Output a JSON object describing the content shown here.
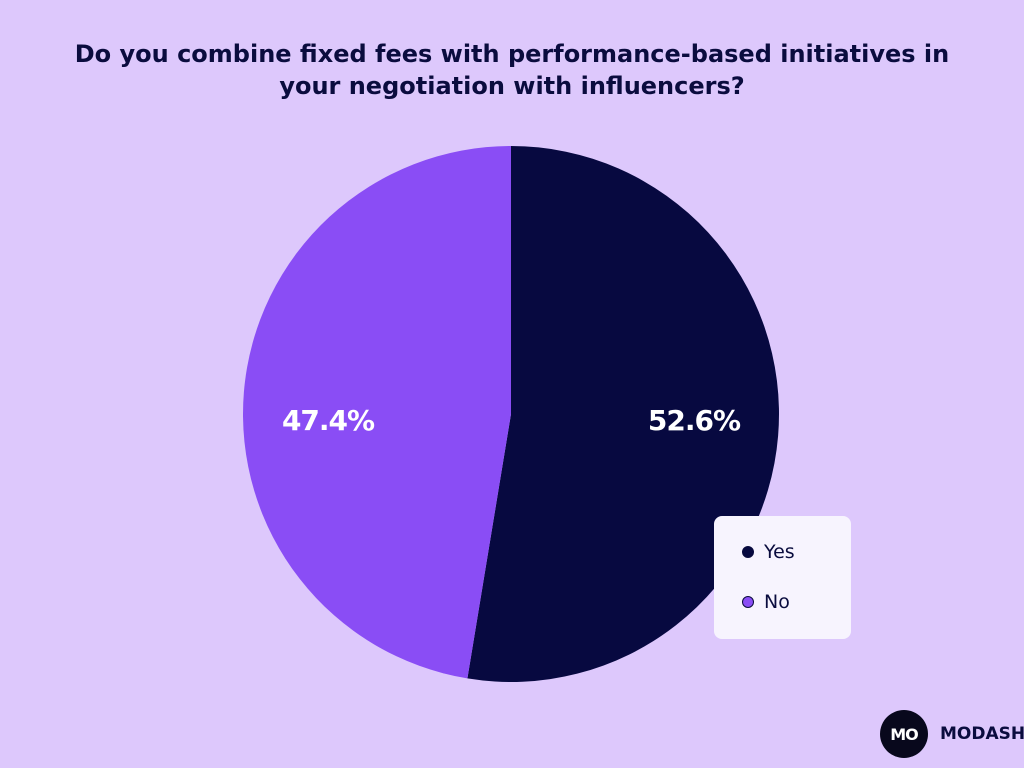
{
  "colors": {
    "background": "#DDC8FC",
    "title": "#0A0C3E",
    "yes": "#070940",
    "no": "#8A4DF5",
    "legend_bg": "#F7F4FE"
  },
  "brand": {
    "logo_text": "MO",
    "name": "MODASH"
  },
  "chart_data": {
    "type": "pie",
    "title_lines": [
      "Do you combine fixed fees with performance-based initiatives in",
      "your negotiation with influencers?"
    ],
    "categories": [
      "Yes",
      "No"
    ],
    "values": [
      52.6,
      47.4
    ],
    "value_labels": [
      "52.6%",
      "47.4%"
    ],
    "colors": [
      "#070940",
      "#8A4DF5"
    ],
    "legend": {
      "position": "bottom-right",
      "items": [
        {
          "label": "Yes",
          "color": "#070940"
        },
        {
          "label": "No",
          "color": "#8A4DF5"
        }
      ]
    }
  }
}
